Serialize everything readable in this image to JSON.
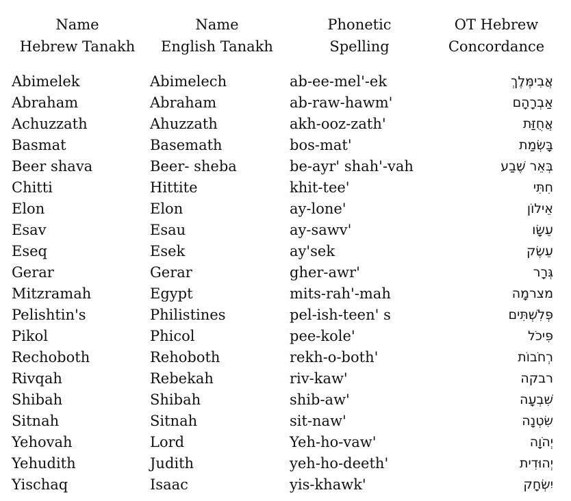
{
  "headers": [
    {
      "line1": "Name",
      "line2": "Hebrew Tanakh"
    },
    {
      "line1": "Name",
      "line2": "English Tanakh"
    },
    {
      "line1": "Phonetic",
      "line2": "Spelling"
    },
    {
      "line1": "OT Hebrew",
      "line2": "Concordance"
    }
  ],
  "rows": [
    {
      "hebrew_name": "Abimelek",
      "english_name": "Abimelech",
      "phonetic": "ab-ee-mel'-ek",
      "hebrew": "אֲבִימֶּלֶךְ"
    },
    {
      "hebrew_name": "Abraham",
      "english_name": "Abraham",
      "phonetic": "ab-raw-hawm'",
      "hebrew": "אַבְרָהָם"
    },
    {
      "hebrew_name": "Achuzzath",
      "english_name": "Ahuzzath",
      "phonetic": "akh-ooz-zath'",
      "hebrew": "אֲחֻזַּת"
    },
    {
      "hebrew_name": "Basmat",
      "english_name": "Basemath",
      "phonetic": "bos-mat'",
      "hebrew": "בָּשְׂמַת"
    },
    {
      "hebrew_name": "Beer shava",
      "english_name": "Beer- sheba",
      "phonetic": "be-ayr' shah'-vah",
      "hebrew": "בְּאֵר שֶׁבַע"
    },
    {
      "hebrew_name": "Chitti",
      "english_name": "Hittite",
      "phonetic": "khit-tee'",
      "hebrew": "חִתִּי"
    },
    {
      "hebrew_name": "Elon",
      "english_name": "Elon",
      "phonetic": "ay-lone'",
      "hebrew": "אֵילוֹן"
    },
    {
      "hebrew_name": "Esav",
      "english_name": "Esau",
      "phonetic": "ay-sawv'",
      "hebrew": "עֵשָׂו"
    },
    {
      "hebrew_name": "Eseq",
      "english_name": "Esek",
      "phonetic": "ay'sek",
      "hebrew": "עֵשֶׂק"
    },
    {
      "hebrew_name": "Gerar",
      "english_name": "Gerar",
      "phonetic": "gher-awr'",
      "hebrew": "גְּרָר"
    },
    {
      "hebrew_name": "Mitzramah",
      "english_name": "Egypt",
      "phonetic": "mits-rah'-mah",
      "hebrew": "מצרמָה"
    },
    {
      "hebrew_name": "Pelishtin's",
      "english_name": "Philistines",
      "phonetic": "pel-ish-teen' s",
      "hebrew": "פְּלִשְׁתִּים"
    },
    {
      "hebrew_name": "Pikol",
      "english_name": "Phicol",
      "phonetic": "pee-kole'",
      "hebrew": "פִּיכֹל"
    },
    {
      "hebrew_name": "Rechoboth",
      "english_name": "Rehoboth",
      "phonetic": "rekh-o-both'",
      "hebrew": "רְחֹבוֹת"
    },
    {
      "hebrew_name": "Rivqah",
      "english_name": "Rebekah",
      "phonetic": "riv-kaw'",
      "hebrew": "רבקה"
    },
    {
      "hebrew_name": "Shibah",
      "english_name": "Shibah",
      "phonetic": "shib-aw'",
      "hebrew": "שִׁבְעָה"
    },
    {
      "hebrew_name": "Sitnah",
      "english_name": "Sitnah",
      "phonetic": "sit-naw'",
      "hebrew": "שִׂטְנָה"
    },
    {
      "hebrew_name": "Yehovah",
      "english_name": "Lord",
      "phonetic": "Yeh-ho-vaw'",
      "hebrew": "יְהֹוָה"
    },
    {
      "hebrew_name": "Yehudith",
      "english_name": "Judith",
      "phonetic": "yeh-ho-deeth'",
      "hebrew": "יְהוּדִית"
    },
    {
      "hebrew_name": "Yischaq",
      "english_name": "Isaac",
      "phonetic": "yis-khawk'",
      "hebrew": "יִשְׂחָק"
    }
  ]
}
